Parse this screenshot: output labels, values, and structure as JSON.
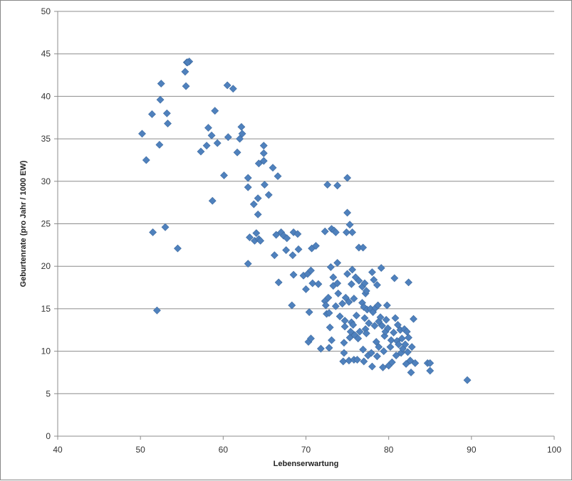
{
  "chart_data": {
    "type": "scatter",
    "title": "",
    "xlabel": "Lebenserwartung",
    "ylabel": "Geburtenrate (pro Jahr / 1000 EW)",
    "xlim": [
      40,
      100
    ],
    "ylim": [
      0,
      50
    ],
    "x_ticks": [
      40,
      50,
      60,
      70,
      80,
      90,
      100
    ],
    "y_ticks": [
      0,
      5,
      10,
      15,
      20,
      25,
      30,
      35,
      40,
      45,
      50
    ],
    "grid": "horizontal major gridlines",
    "legend": "none",
    "marker": "diamond",
    "marker_color": "#4F81BD",
    "points": [
      [
        50.2,
        35.6
      ],
      [
        50.7,
        32.5
      ],
      [
        51.4,
        37.9
      ],
      [
        51.5,
        24.0
      ],
      [
        52.0,
        14.8
      ],
      [
        52.3,
        34.3
      ],
      [
        52.4,
        39.6
      ],
      [
        52.5,
        41.5
      ],
      [
        53.0,
        24.6
      ],
      [
        53.2,
        38.0
      ],
      [
        53.3,
        36.8
      ],
      [
        54.5,
        22.1
      ],
      [
        55.4,
        42.9
      ],
      [
        55.5,
        41.2
      ],
      [
        55.6,
        44.0
      ],
      [
        55.9,
        44.1
      ],
      [
        55.7,
        44.0
      ],
      [
        57.3,
        33.5
      ],
      [
        58.0,
        34.2
      ],
      [
        58.2,
        36.3
      ],
      [
        58.6,
        35.4
      ],
      [
        58.7,
        27.7
      ],
      [
        59.0,
        38.3
      ],
      [
        59.3,
        34.5
      ],
      [
        60.1,
        30.7
      ],
      [
        60.5,
        41.3
      ],
      [
        60.6,
        35.2
      ],
      [
        61.2,
        40.9
      ],
      [
        61.7,
        33.4
      ],
      [
        62.0,
        35.0
      ],
      [
        62.2,
        36.4
      ],
      [
        62.3,
        35.6
      ],
      [
        63.0,
        30.4
      ],
      [
        63.0,
        29.3
      ],
      [
        63.0,
        20.3
      ],
      [
        63.2,
        23.4
      ],
      [
        63.7,
        27.3
      ],
      [
        63.8,
        23.0
      ],
      [
        64.0,
        23.9
      ],
      [
        64.2,
        28.0
      ],
      [
        64.2,
        26.1
      ],
      [
        64.3,
        23.2
      ],
      [
        64.3,
        32.1
      ],
      [
        64.5,
        23.0
      ],
      [
        64.9,
        34.2
      ],
      [
        64.9,
        33.3
      ],
      [
        64.9,
        32.4
      ],
      [
        65.0,
        29.6
      ],
      [
        65.5,
        28.4
      ],
      [
        66.0,
        31.6
      ],
      [
        66.2,
        21.3
      ],
      [
        66.4,
        23.7
      ],
      [
        66.6,
        30.6
      ],
      [
        66.7,
        18.1
      ],
      [
        67.0,
        24.0
      ],
      [
        67.3,
        23.6
      ],
      [
        67.6,
        21.9
      ],
      [
        67.7,
        23.3
      ],
      [
        68.3,
        15.4
      ],
      [
        68.4,
        21.3
      ],
      [
        68.5,
        19.0
      ],
      [
        68.5,
        24.0
      ],
      [
        69.0,
        23.8
      ],
      [
        69.1,
        22.0
      ],
      [
        69.7,
        18.9
      ],
      [
        70.0,
        17.3
      ],
      [
        70.2,
        19.1
      ],
      [
        70.3,
        11.1
      ],
      [
        70.4,
        14.6
      ],
      [
        70.6,
        11.5
      ],
      [
        70.6,
        19.5
      ],
      [
        70.7,
        22.1
      ],
      [
        70.8,
        18.0
      ],
      [
        71.2,
        22.4
      ],
      [
        71.5,
        17.9
      ],
      [
        71.8,
        10.3
      ],
      [
        72.3,
        24.1
      ],
      [
        72.3,
        15.9
      ],
      [
        72.4,
        15.4
      ],
      [
        72.5,
        14.4
      ],
      [
        72.6,
        29.6
      ],
      [
        72.7,
        16.3
      ],
      [
        72.8,
        10.4
      ],
      [
        72.8,
        14.5
      ],
      [
        72.9,
        12.8
      ],
      [
        73.0,
        19.9
      ],
      [
        73.1,
        24.4
      ],
      [
        73.1,
        11.3
      ],
      [
        73.3,
        18.7
      ],
      [
        73.3,
        17.7
      ],
      [
        73.4,
        24.2
      ],
      [
        73.6,
        15.3
      ],
      [
        73.6,
        24.0
      ],
      [
        73.8,
        29.5
      ],
      [
        73.8,
        20.4
      ],
      [
        73.8,
        18.0
      ],
      [
        73.9,
        16.8
      ],
      [
        74.1,
        14.1
      ],
      [
        74.4,
        15.6
      ],
      [
        74.5,
        8.8
      ],
      [
        74.6,
        11.0
      ],
      [
        74.6,
        9.8
      ],
      [
        74.7,
        13.6
      ],
      [
        74.7,
        12.9
      ],
      [
        74.8,
        16.3
      ],
      [
        74.9,
        24.0
      ],
      [
        75.0,
        30.4
      ],
      [
        75.0,
        26.3
      ],
      [
        75.0,
        19.1
      ],
      [
        75.2,
        15.8
      ],
      [
        75.2,
        8.9
      ],
      [
        75.3,
        11.6
      ],
      [
        75.3,
        24.9
      ],
      [
        75.4,
        12.3
      ],
      [
        75.5,
        13.4
      ],
      [
        75.5,
        17.9
      ],
      [
        75.6,
        24.0
      ],
      [
        75.6,
        19.6
      ],
      [
        75.7,
        13.1
      ],
      [
        75.8,
        9.0
      ],
      [
        75.8,
        16.2
      ],
      [
        75.9,
        11.9
      ],
      [
        76.0,
        18.7
      ],
      [
        76.1,
        14.2
      ],
      [
        76.2,
        9.0
      ],
      [
        76.3,
        11.5
      ],
      [
        76.4,
        22.2
      ],
      [
        76.4,
        18.3
      ],
      [
        76.5,
        12.3
      ],
      [
        76.8,
        15.7
      ],
      [
        76.8,
        17.6
      ],
      [
        76.9,
        22.2
      ],
      [
        76.9,
        10.2
      ],
      [
        77.0,
        15.2
      ],
      [
        77.0,
        8.8
      ],
      [
        77.1,
        18.0
      ],
      [
        77.1,
        13.9
      ],
      [
        77.2,
        12.6
      ],
      [
        77.2,
        16.8
      ],
      [
        77.3,
        17.1
      ],
      [
        77.3,
        12.1
      ],
      [
        77.4,
        14.9
      ],
      [
        77.5,
        9.5
      ],
      [
        77.6,
        13.3
      ],
      [
        77.8,
        15.0
      ],
      [
        77.9,
        9.8
      ],
      [
        78.0,
        19.3
      ],
      [
        78.0,
        8.2
      ],
      [
        78.1,
        14.6
      ],
      [
        78.2,
        18.4
      ],
      [
        78.3,
        13.0
      ],
      [
        78.4,
        15.1
      ],
      [
        78.5,
        11.1
      ],
      [
        78.6,
        17.8
      ],
      [
        78.6,
        9.4
      ],
      [
        78.7,
        15.4
      ],
      [
        78.8,
        13.5
      ],
      [
        78.8,
        10.5
      ],
      [
        79.0,
        14.0
      ],
      [
        79.1,
        19.8
      ],
      [
        79.2,
        13.0
      ],
      [
        79.3,
        8.1
      ],
      [
        79.4,
        10.0
      ],
      [
        79.5,
        11.8
      ],
      [
        79.6,
        12.3
      ],
      [
        79.7,
        13.7
      ],
      [
        79.8,
        15.4
      ],
      [
        79.9,
        12.7
      ],
      [
        80.0,
        8.3
      ],
      [
        80.2,
        10.5
      ],
      [
        80.3,
        11.3
      ],
      [
        80.4,
        8.7
      ],
      [
        80.6,
        12.2
      ],
      [
        80.7,
        18.6
      ],
      [
        80.8,
        13.9
      ],
      [
        80.9,
        9.5
      ],
      [
        81.0,
        11.2
      ],
      [
        81.1,
        13.1
      ],
      [
        81.2,
        10.8
      ],
      [
        81.4,
        12.5
      ],
      [
        81.5,
        9.8
      ],
      [
        81.6,
        11.5
      ],
      [
        81.7,
        10.3
      ],
      [
        81.9,
        12.6
      ],
      [
        82.0,
        10.8
      ],
      [
        82.1,
        8.5
      ],
      [
        82.2,
        12.3
      ],
      [
        82.3,
        9.9
      ],
      [
        82.4,
        18.1
      ],
      [
        82.4,
        11.6
      ],
      [
        82.6,
        8.9
      ],
      [
        82.7,
        7.5
      ],
      [
        82.8,
        10.5
      ],
      [
        83.0,
        13.8
      ],
      [
        83.2,
        8.6
      ],
      [
        84.7,
        8.6
      ],
      [
        85.0,
        8.6
      ],
      [
        85.0,
        7.7
      ],
      [
        89.5,
        6.6
      ]
    ]
  }
}
